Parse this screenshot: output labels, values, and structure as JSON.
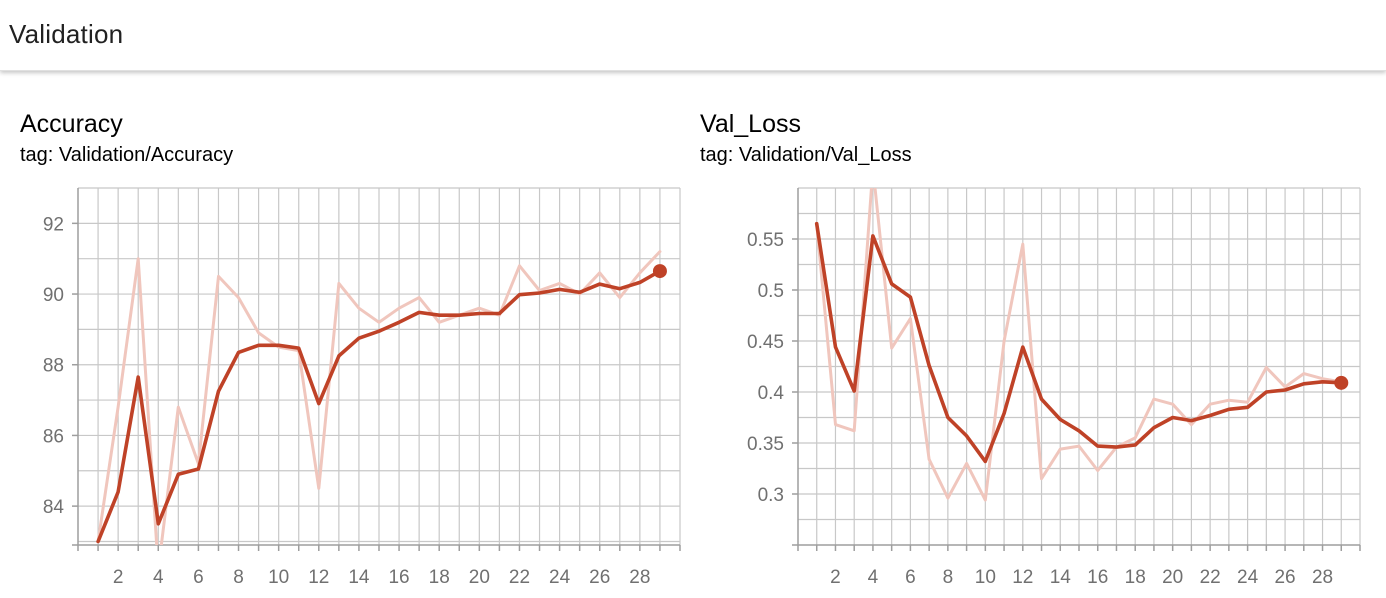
{
  "header": {
    "title": "Validation"
  },
  "colors": {
    "line": "#bf4227",
    "raw": "#f0c6bd",
    "grid": "#c8c8c8",
    "axis": "#9e9e9e"
  },
  "charts": [
    {
      "title": "Accuracy",
      "tag": "tag: Validation/Accuracy"
    },
    {
      "title": "Val_Loss",
      "tag": "tag: Validation/Val_Loss"
    }
  ],
  "chart_data": [
    {
      "type": "line",
      "title": "Accuracy",
      "subtitle": "tag: Validation/Accuracy",
      "xlim": [
        0,
        30
      ],
      "ylim": [
        82.9,
        93.0
      ],
      "xticks": [
        2,
        4,
        6,
        8,
        10,
        12,
        14,
        16,
        18,
        20,
        22,
        24,
        26,
        28
      ],
      "xtick_labels": [
        "2",
        "4",
        "6",
        "8",
        "10",
        "12",
        "14",
        "16",
        "18",
        "20",
        "22",
        "24",
        "26",
        "28"
      ],
      "yticks": [
        84,
        86,
        88,
        90,
        92
      ],
      "ytick_labels": [
        "84",
        "86",
        "88",
        "90",
        "92"
      ],
      "grid": true,
      "series": [
        {
          "role": "raw",
          "x": [
            1,
            2,
            3,
            4,
            5,
            6,
            7,
            8,
            9,
            10,
            11,
            12,
            13,
            14,
            15,
            16,
            17,
            18,
            19,
            20,
            21,
            22,
            23,
            24,
            25,
            26,
            27,
            28,
            29
          ],
          "y": [
            83.0,
            86.8,
            91.0,
            82.2,
            86.8,
            85.2,
            90.5,
            89.9,
            88.9,
            88.5,
            88.4,
            84.5,
            90.3,
            89.6,
            89.2,
            89.6,
            89.9,
            89.2,
            89.4,
            89.6,
            89.4,
            90.8,
            90.1,
            90.3,
            90.0,
            90.6,
            89.9,
            90.6,
            91.2
          ]
        },
        {
          "role": "smoothed",
          "x": [
            1,
            2,
            3,
            4,
            5,
            6,
            7,
            8,
            9,
            10,
            11,
            12,
            13,
            14,
            15,
            16,
            17,
            18,
            19,
            20,
            21,
            22,
            23,
            24,
            25,
            26,
            27,
            28,
            29
          ],
          "y": [
            83.0,
            84.4,
            87.65,
            83.5,
            84.9,
            85.05,
            87.25,
            88.35,
            88.55,
            88.55,
            88.47,
            86.9,
            88.25,
            88.75,
            88.95,
            89.2,
            89.48,
            89.4,
            89.4,
            89.45,
            89.45,
            89.98,
            90.03,
            90.13,
            90.05,
            90.28,
            90.15,
            90.33,
            90.65
          ]
        }
      ]
    },
    {
      "type": "line",
      "title": "Val_Loss",
      "subtitle": "tag: Validation/Val_Loss",
      "xlim": [
        0,
        30
      ],
      "ylim": [
        0.25,
        0.6
      ],
      "xticks": [
        2,
        4,
        6,
        8,
        10,
        12,
        14,
        16,
        18,
        20,
        22,
        24,
        26,
        28
      ],
      "xtick_labels": [
        "2",
        "4",
        "6",
        "8",
        "10",
        "12",
        "14",
        "16",
        "18",
        "20",
        "22",
        "24",
        "26",
        "28"
      ],
      "yticks": [
        0.3,
        0.35,
        0.4,
        0.45,
        0.5,
        0.55
      ],
      "ytick_labels": [
        "0.3",
        "0.35",
        "0.4",
        "0.45",
        "0.5",
        "0.55"
      ],
      "grid": true,
      "series": [
        {
          "role": "raw",
          "x": [
            1,
            2,
            3,
            4,
            5,
            6,
            7,
            8,
            9,
            10,
            11,
            12,
            13,
            14,
            15,
            16,
            17,
            18,
            19,
            20,
            21,
            22,
            23,
            24,
            25,
            26,
            27,
            28,
            29
          ],
          "y": [
            0.565,
            0.368,
            0.362,
            0.62,
            0.443,
            0.472,
            0.334,
            0.296,
            0.33,
            0.294,
            0.45,
            0.545,
            0.315,
            0.344,
            0.347,
            0.323,
            0.346,
            0.355,
            0.393,
            0.388,
            0.368,
            0.388,
            0.392,
            0.39,
            0.424,
            0.405,
            0.418,
            0.413,
            0.41
          ]
        },
        {
          "role": "smoothed",
          "x": [
            1,
            2,
            3,
            4,
            5,
            6,
            7,
            8,
            9,
            10,
            11,
            12,
            13,
            14,
            15,
            16,
            17,
            18,
            19,
            20,
            21,
            22,
            23,
            24,
            25,
            26,
            27,
            28,
            29
          ],
          "y": [
            0.565,
            0.444,
            0.401,
            0.553,
            0.506,
            0.493,
            0.426,
            0.375,
            0.357,
            0.332,
            0.379,
            0.444,
            0.393,
            0.373,
            0.362,
            0.347,
            0.346,
            0.348,
            0.365,
            0.375,
            0.372,
            0.377,
            0.383,
            0.385,
            0.4,
            0.402,
            0.408,
            0.41,
            0.409
          ]
        }
      ]
    }
  ]
}
